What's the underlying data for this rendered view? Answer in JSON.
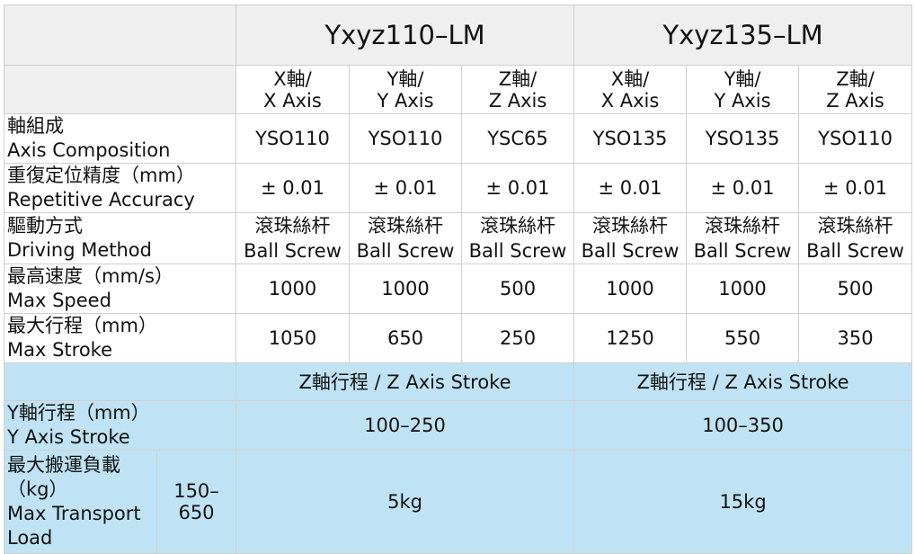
{
  "models": [
    "Yxyz110–LM",
    "Yxyz135–LM"
  ],
  "axis_headers": [
    {
      "cn": "X軸/",
      "en": "X Axis"
    },
    {
      "cn": "Y軸/",
      "en": "Y Axis"
    },
    {
      "cn": "Z軸/",
      "en": "Z Axis"
    },
    {
      "cn": "X軸/",
      "en": "X Axis"
    },
    {
      "cn": "Y軸/",
      "en": "Y Axis"
    },
    {
      "cn": "Z軸/",
      "en": "Z Axis"
    }
  ],
  "rows": [
    {
      "label_cn": "軸組成",
      "label_en": "Axis Composition",
      "cells": [
        {
          "v": "YSO110"
        },
        {
          "v": "YSO110"
        },
        {
          "v": "YSC65"
        },
        {
          "v": "YSO135"
        },
        {
          "v": "YSO135"
        },
        {
          "v": "YSO110"
        }
      ]
    },
    {
      "label_cn": "重復定位精度（mm）",
      "label_en": "Repetitive Accuracy",
      "cells": [
        {
          "v": "± 0.01"
        },
        {
          "v": "± 0.01"
        },
        {
          "v": "± 0.01"
        },
        {
          "v": "± 0.01"
        },
        {
          "v": "± 0.01"
        },
        {
          "v": "± 0.01"
        }
      ]
    },
    {
      "label_cn": "驅動方式",
      "label_en": "Driving Method",
      "cells": [
        {
          "cn": "滾珠絲杆",
          "en": "Ball Screw"
        },
        {
          "cn": "滾珠絲杆",
          "en": "Ball Screw"
        },
        {
          "cn": "滾珠絲杆",
          "en": "Ball Screw"
        },
        {
          "cn": "滾珠絲杆",
          "en": "Ball Screw"
        },
        {
          "cn": "滾珠絲杆",
          "en": "Ball Screw"
        },
        {
          "cn": "滾珠絲杆",
          "en": "Ball Screw"
        }
      ]
    },
    {
      "label_cn": "最高速度（mm/s）",
      "label_en": "Max Speed",
      "cells": [
        {
          "v": "1000"
        },
        {
          "v": "1000"
        },
        {
          "v": "500"
        },
        {
          "v": "1000"
        },
        {
          "v": "1000"
        },
        {
          "v": "500"
        }
      ]
    },
    {
      "label_cn": "最大行程（mm）",
      "label_en": "Max Stroke",
      "cells": [
        {
          "v": "1050"
        },
        {
          "v": "650"
        },
        {
          "v": "250"
        },
        {
          "v": "1250"
        },
        {
          "v": "550"
        },
        {
          "v": "350"
        }
      ]
    }
  ],
  "z_stroke_header": [
    "Z軸行程 / Z Axis Stroke",
    "Z軸行程 / Z Axis Stroke"
  ],
  "y_stroke": {
    "label_cn": "Y軸行程（mm）",
    "label_en": "Y Axis Stroke",
    "values": [
      "100–250",
      "100–350"
    ]
  },
  "load": {
    "label_lines": [
      "最大搬運負載",
      "（kg）",
      "Max Transport",
      "Load"
    ],
    "range_lines": [
      "150–",
      "650"
    ],
    "values": [
      "5kg",
      "15kg"
    ]
  },
  "colors": {
    "header_gray": "#efefef",
    "blue": "#bfe3f4",
    "border": "#cfcfcf"
  }
}
